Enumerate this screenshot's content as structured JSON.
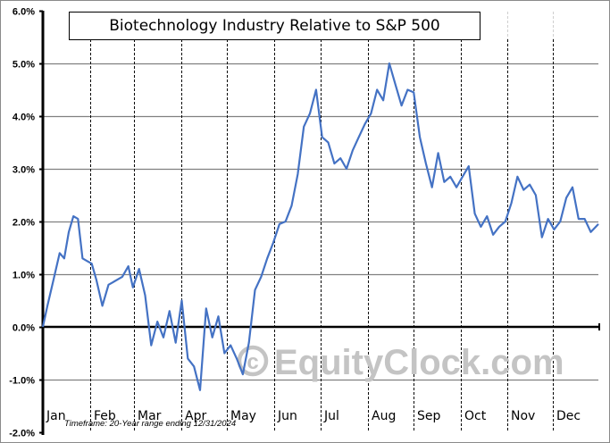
{
  "chart_data": {
    "type": "line",
    "title": "Biotechnology Industry Relative to S&P 500",
    "xlabel": "",
    "ylabel": "",
    "ylim": [
      -2.0,
      6.0
    ],
    "yticks": [
      "6.0%",
      "5.0%",
      "4.0%",
      "3.0%",
      "2.0%",
      "1.0%",
      "0.0%",
      "-1.0%",
      "-2.0%"
    ],
    "categories": [
      "Jan",
      "Feb",
      "Mar",
      "Apr",
      "May",
      "Jun",
      "Jul",
      "Aug",
      "Sep",
      "Oct",
      "Nov",
      "Dec"
    ],
    "grid": {
      "horizontal": true,
      "vertical_month_dividers": "dashed"
    },
    "annotation": "Timeframe: 20-Year range ending 12/31/2024",
    "watermark": "© EquityClock.com",
    "series": [
      {
        "name": "Biotechnology Industry Relative to S&P 500",
        "color": "#4472c4",
        "x_day_of_year": [
          1,
          4,
          8,
          12,
          15,
          18,
          21,
          24,
          27,
          30,
          33,
          36,
          40,
          44,
          47,
          50,
          53,
          57,
          60,
          64,
          68,
          72,
          76,
          80,
          84,
          88,
          92,
          96,
          100,
          104,
          108,
          112,
          116,
          120,
          124,
          128,
          132,
          136,
          140,
          144,
          148,
          152,
          156,
          160,
          164,
          168,
          172,
          176,
          180,
          184,
          188,
          192,
          196,
          200,
          204,
          208,
          212,
          216,
          220,
          224,
          228,
          232,
          236,
          240,
          244,
          248,
          252,
          256,
          260,
          264,
          268,
          272,
          276,
          280,
          284,
          288,
          292,
          296,
          300,
          304,
          308,
          312,
          316,
          320,
          324,
          328,
          332,
          336,
          340,
          344,
          348,
          352,
          356,
          360,
          365
        ],
        "values": [
          0.0,
          0.4,
          0.9,
          1.4,
          1.3,
          1.8,
          2.1,
          2.05,
          1.3,
          1.25,
          1.2,
          0.9,
          0.4,
          0.8,
          0.85,
          0.9,
          0.95,
          1.15,
          0.75,
          1.1,
          0.6,
          -0.35,
          0.1,
          -0.2,
          0.3,
          -0.3,
          0.5,
          -0.6,
          -0.75,
          -1.2,
          0.35,
          -0.2,
          0.2,
          -0.5,
          -0.35,
          -0.6,
          -0.9,
          -0.3,
          0.7,
          0.95,
          1.3,
          1.6,
          1.95,
          2.0,
          2.3,
          2.9,
          3.8,
          4.05,
          4.5,
          3.6,
          3.5,
          3.1,
          3.2,
          3.0,
          3.35,
          3.6,
          3.85,
          4.05,
          4.5,
          4.3,
          5.0,
          4.6,
          4.2,
          4.5,
          4.45,
          3.6,
          3.1,
          2.65,
          3.3,
          2.75,
          2.85,
          2.65,
          2.85,
          3.05,
          2.15,
          1.9,
          2.1,
          1.75,
          1.9,
          2.0,
          2.35,
          2.85,
          2.6,
          2.7,
          2.5,
          1.7,
          2.05,
          1.85,
          2.0,
          2.45,
          2.65,
          2.05,
          2.05,
          1.8,
          1.95
        ]
      }
    ]
  },
  "title": "Biotechnology Industry Relative to S&P 500",
  "footer": {
    "timeframe": "Timeframe: 20-Year range ending 12/31/2024",
    "watermark": "© EquityClock.com"
  },
  "axis": {
    "y_labels": [
      "6.0%",
      "5.0%",
      "4.0%",
      "3.0%",
      "2.0%",
      "1.0%",
      "0.0%",
      "-1.0%",
      "-2.0%"
    ],
    "x_labels": [
      "Jan",
      "Feb",
      "Mar",
      "Apr",
      "May",
      "Jun",
      "Jul",
      "Aug",
      "Sep",
      "Oct",
      "Nov",
      "Dec"
    ]
  },
  "colors": {
    "line": "#4472c4",
    "grid": "#808080",
    "axis": "#000000",
    "watermark": "#c4c4c4"
  }
}
